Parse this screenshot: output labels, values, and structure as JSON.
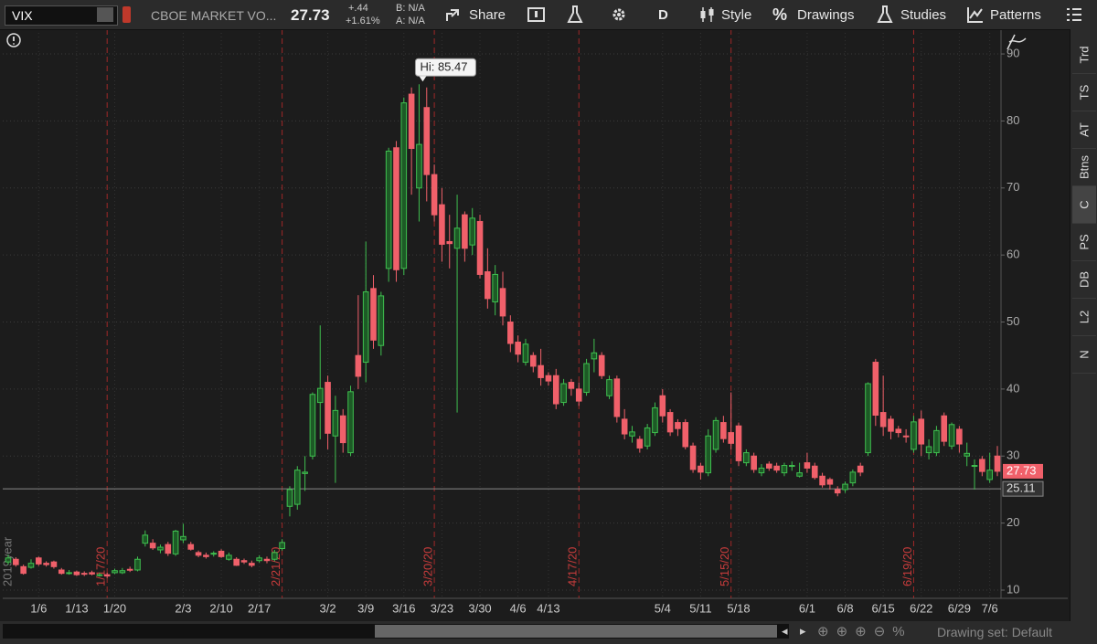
{
  "toolbar": {
    "symbol": "VIX",
    "description": "CBOE MARKET VO...",
    "change": "+.44",
    "change_pct": "+1.61%",
    "bid": "B: N/A",
    "ask": "A: N/A",
    "buttons": [
      "Share",
      "D",
      "Style",
      "Drawings",
      "Studies",
      "Patterns"
    ]
  },
  "side_tabs": [
    "Trd",
    "TS",
    "AT",
    "Btns",
    "C",
    "PS",
    "DB",
    "L2",
    "N"
  ],
  "footer": {
    "drawing_set": "Drawing set: Default"
  },
  "chart_data": {
    "type": "candlestick",
    "categories": [
      null,
      null,
      null,
      null,
      "1/6",
      null,
      null,
      null,
      null,
      "1/13",
      null,
      null,
      null,
      null,
      "1/20",
      null,
      null,
      null,
      null,
      null,
      null,
      null,
      null,
      "2/3",
      null,
      null,
      null,
      null,
      "2/10",
      null,
      null,
      null,
      null,
      "2/17",
      null,
      null,
      null,
      null,
      null,
      null,
      null,
      null,
      "3/2",
      null,
      null,
      null,
      null,
      "3/9",
      null,
      null,
      null,
      null,
      "3/16",
      null,
      null,
      null,
      null,
      "3/23",
      null,
      null,
      null,
      null,
      "3/30",
      null,
      null,
      null,
      null,
      "4/6",
      null,
      null,
      null,
      "4/13",
      null,
      null,
      null,
      null,
      null,
      null,
      null,
      null,
      null,
      null,
      null,
      null,
      null,
      null,
      "5/4",
      null,
      null,
      null,
      null,
      "5/11",
      null,
      null,
      null,
      null,
      "5/18",
      null,
      null,
      null,
      null,
      null,
      null,
      null,
      null,
      "6/1",
      null,
      null,
      null,
      null,
      "6/8",
      null,
      null,
      null,
      null,
      "6/15",
      null,
      null,
      null,
      null,
      "6/22",
      null,
      null,
      null,
      null,
      "6/29",
      null,
      null,
      null,
      "7/6",
      null
    ],
    "open": [
      14.2,
      14.6,
      13.5,
      13.4,
      14.8,
      14.0,
      14.2,
      13.0,
      12.5,
      12.7,
      12.5,
      12.6,
      12.3,
      12.3,
      12.6,
      12.6,
      13.1,
      13.0,
      17.0,
      17.0,
      16.0,
      16.8,
      15.4,
      17.5,
      16.8,
      15.6,
      15.2,
      15.4,
      15.8,
      14.6,
      14.6,
      14.4,
      14.0,
      14.4,
      14.6,
      14.6,
      16.2,
      22.5,
      22.8,
      27.4,
      30.0,
      38.0,
      41.0,
      33.0,
      36.0,
      30.5,
      45.0,
      44.0,
      55.0,
      46.5,
      58.0,
      76.0,
      58.0,
      84.0,
      70.0,
      82.0,
      72.0,
      67.5,
      62.0,
      61.0,
      66.0,
      61.5,
      65.0,
      57.5,
      53.0,
      55.0,
      50.0,
      47.0,
      44.0,
      45.0,
      43.5,
      42.0,
      42.0,
      38.0,
      41.0,
      40.0,
      39.5,
      44.5,
      45.0,
      39.0,
      41.5,
      35.5,
      33.0,
      32.5,
      31.5,
      33.5,
      39.0,
      36.5,
      35.0,
      35.0,
      31.5,
      28.5,
      27.5,
      31.0,
      35.0,
      33.5,
      34.5,
      29.0,
      30.0,
      27.5,
      28.8,
      28.5,
      27.5,
      28.5,
      27.0,
      29.0,
      28.5,
      27.0,
      26.5,
      25.0,
      25.0,
      26.0,
      28.5,
      30.5,
      44.0,
      36.5,
      35.5,
      34.0,
      33.0,
      31.0,
      35.5,
      30.5,
      30.5,
      36.0,
      31.5,
      34.0,
      30.0,
      28.5,
      29.5,
      26.5,
      30.0
    ],
    "high": [
      15.3,
      14.9,
      13.8,
      14.6,
      15.0,
      14.3,
      14.4,
      13.3,
      13.0,
      12.9,
      12.8,
      12.9,
      12.6,
      12.6,
      13.2,
      13.3,
      13.5,
      15.0,
      18.9,
      17.6,
      16.8,
      17.2,
      19.0,
      19.9,
      17.2,
      15.9,
      15.6,
      15.8,
      16.1,
      15.6,
      14.9,
      14.7,
      14.4,
      15.2,
      15.0,
      16.0,
      17.6,
      25.5,
      28.5,
      30.0,
      39.5,
      49.5,
      42.0,
      39.0,
      37.0,
      40.5,
      54.0,
      62.0,
      57.0,
      54.5,
      76.0,
      77.0,
      83.5,
      85.0,
      85.47,
      85.0,
      73.5,
      70.0,
      66.0,
      69.0,
      66.5,
      67.0,
      66.0,
      61.0,
      58.5,
      57.5,
      51.0,
      48.0,
      47.5,
      45.5,
      46.0,
      42.5,
      43.0,
      41.5,
      41.5,
      41.0,
      44.5,
      47.5,
      45.5,
      42.0,
      42.0,
      37.0,
      34.5,
      33.0,
      34.8,
      38.0,
      40.0,
      37.0,
      35.5,
      35.5,
      32.0,
      29.0,
      34.0,
      35.8,
      36.0,
      39.5,
      35.0,
      31.0,
      30.5,
      28.8,
      29.2,
      29.0,
      29.0,
      29.2,
      29.0,
      30.5,
      29.0,
      27.5,
      26.8,
      25.5,
      26.2,
      28.0,
      29.0,
      41.0,
      44.5,
      42.0,
      36.0,
      34.5,
      34.0,
      36.0,
      36.8,
      32.5,
      34.5,
      36.5,
      35.0,
      34.5,
      32.0,
      29.5,
      30.0,
      30.5,
      31.5
    ],
    "low": [
      13.8,
      13.5,
      12.3,
      13.2,
      13.6,
      13.5,
      13.2,
      12.3,
      12.3,
      12.1,
      12.1,
      12.2,
      12.0,
      11.8,
      12.4,
      12.4,
      12.7,
      12.8,
      16.5,
      16.0,
      15.5,
      15.1,
      15.1,
      17.0,
      15.9,
      14.9,
      14.7,
      15.0,
      14.8,
      14.4,
      13.6,
      13.9,
      13.4,
      14.1,
      14.0,
      14.3,
      15.9,
      21.0,
      22.0,
      24.8,
      29.5,
      32.5,
      31.0,
      26.0,
      30.5,
      30.0,
      40.0,
      41.0,
      46.0,
      45.0,
      56.0,
      56.0,
      57.0,
      69.0,
      65.0,
      68.0,
      65.0,
      59.0,
      58.0,
      36.5,
      59.0,
      60.0,
      56.5,
      52.0,
      51.0,
      49.5,
      45.5,
      44.0,
      43.5,
      42.5,
      40.5,
      40.5,
      37.0,
      37.5,
      39.0,
      37.5,
      39.0,
      42.5,
      41.5,
      38.5,
      35.0,
      32.5,
      32.0,
      30.5,
      31.0,
      33.0,
      35.0,
      33.0,
      33.0,
      31.0,
      27.5,
      26.5,
      27.0,
      30.5,
      32.0,
      31.0,
      28.5,
      28.5,
      27.5,
      27.0,
      27.8,
      27.5,
      27.0,
      27.8,
      26.8,
      27.5,
      26.5,
      25.3,
      25.0,
      24.0,
      24.5,
      25.5,
      27.0,
      30.0,
      34.5,
      33.0,
      32.5,
      32.8,
      32.0,
      30.5,
      30.0,
      29.5,
      30.0,
      31.5,
      31.0,
      30.5,
      28.5,
      25.0,
      27.0,
      26.0,
      27.0
    ],
    "close": [
      14.8,
      13.8,
      12.5,
      14.0,
      13.9,
      13.8,
      13.5,
      12.5,
      12.6,
      12.3,
      12.4,
      12.4,
      12.3,
      12.1,
      12.9,
      12.9,
      13.0,
      14.6,
      18.2,
      16.3,
      16.4,
      15.5,
      18.8,
      18.0,
      16.1,
      15.2,
      15.0,
      15.5,
      15.0,
      15.2,
      13.7,
      14.2,
      13.7,
      14.8,
      14.4,
      15.6,
      17.1,
      25.0,
      27.9,
      27.6,
      39.2,
      40.1,
      33.4,
      36.8,
      32.0,
      39.6,
      41.9,
      54.5,
      47.3,
      53.9,
      75.5,
      57.8,
      82.7,
      75.9,
      76.5,
      72.0,
      66.0,
      61.6,
      61.7,
      64.0,
      61.0,
      65.5,
      57.1,
      53.5,
      57.1,
      50.9,
      46.8,
      45.2,
      46.7,
      43.4,
      41.7,
      41.2,
      37.8,
      40.8,
      40.1,
      38.2,
      43.8,
      45.4,
      42.0,
      41.4,
      35.9,
      33.3,
      33.6,
      31.2,
      34.2,
      37.2,
      36.0,
      33.6,
      34.1,
      31.4,
      28.0,
      27.6,
      33.0,
      35.3,
      32.6,
      31.9,
      29.3,
      30.5,
      28.0,
      28.2,
      28.2,
      27.9,
      28.6,
      28.6,
      27.5,
      28.2,
      26.8,
      25.7,
      25.8,
      24.5,
      25.8,
      27.6,
      27.6,
      40.8,
      36.1,
      34.4,
      33.7,
      33.5,
      32.9,
      35.1,
      31.8,
      31.4,
      33.8,
      32.2,
      34.7,
      31.8,
      30.4,
      28.6,
      27.7,
      27.9,
      27.73
    ],
    "up_color": "#3fbf4f",
    "down_color": "#f0606a",
    "ylim": [
      8.8,
      93.7
    ],
    "yticks": [
      10,
      20,
      30,
      40,
      50,
      60,
      70,
      80,
      90
    ],
    "grid": true,
    "year_label": "2019year",
    "expiry_labels": [
      null,
      null,
      null,
      null,
      null,
      null,
      null,
      null,
      null,
      null,
      null,
      null,
      null,
      "1/17/20",
      null,
      null,
      null,
      null,
      null,
      null,
      null,
      null,
      null,
      null,
      null,
      null,
      null,
      null,
      null,
      null,
      null,
      null,
      null,
      null,
      null,
      null,
      "2/21/20",
      null,
      null,
      null,
      null,
      null,
      null,
      null,
      null,
      null,
      null,
      null,
      null,
      null,
      null,
      null,
      null,
      null,
      null,
      null,
      "3/20/20",
      null,
      null,
      null,
      null,
      null,
      null,
      null,
      null,
      null,
      null,
      null,
      null,
      null,
      null,
      null,
      null,
      null,
      null,
      "4/17/20",
      null,
      null,
      null,
      null,
      null,
      null,
      null,
      null,
      null,
      null,
      null,
      null,
      null,
      null,
      null,
      null,
      null,
      null,
      null,
      "5/15/20",
      null,
      null,
      null,
      null,
      null,
      null,
      null,
      null,
      null,
      null,
      null,
      null,
      null,
      null,
      null,
      null,
      null,
      null,
      null,
      null,
      null,
      null,
      null,
      "6/19/20",
      null,
      null,
      null,
      null,
      null,
      null,
      null,
      null,
      null,
      null,
      null
    ],
    "hi_label": "Hi: 85.47",
    "last_price": 27.73,
    "price_line": 25.11
  }
}
